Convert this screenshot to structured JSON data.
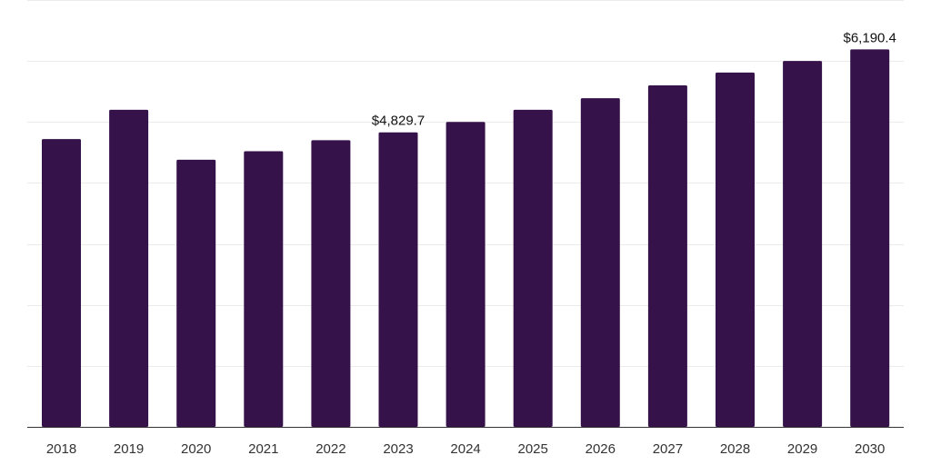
{
  "chart_data": {
    "type": "bar",
    "categories": [
      "2018",
      "2019",
      "2020",
      "2021",
      "2022",
      "2023",
      "2024",
      "2025",
      "2026",
      "2027",
      "2028",
      "2029",
      "2030"
    ],
    "values": [
      4720,
      5200,
      4380,
      4520,
      4700,
      4829.7,
      5000,
      5200,
      5390,
      5600,
      5810,
      6000,
      6190.4
    ],
    "data_labels": [
      {
        "category": "2023",
        "text": "$4,829.7"
      },
      {
        "category": "2030",
        "text": "$6,190.4"
      }
    ],
    "title": "",
    "xlabel": "",
    "ylabel": "",
    "ylim": [
      0,
      7000
    ],
    "grid": true,
    "legend": "none",
    "colors": {
      "bar": "#35124a",
      "grid": "#ebebeb",
      "axis": "#333333"
    }
  }
}
